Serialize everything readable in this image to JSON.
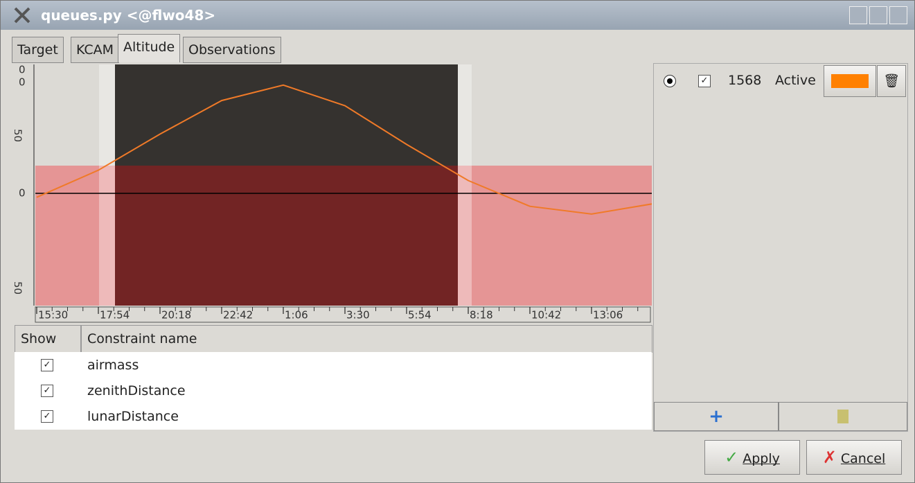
{
  "window": {
    "title": "queues.py <@flwo48>"
  },
  "tabs": [
    "Target",
    "KCAM",
    "Altitude",
    "Observations"
  ],
  "y_axis_labels": [
    "0",
    "0",
    "50",
    "0",
    "50"
  ],
  "chart_data": {
    "type": "line",
    "categories": [
      "15:30",
      "17:54",
      "20:18",
      "22:42",
      "1:06",
      "3:30",
      "5:54",
      "8:18",
      "10:42",
      "13:06",
      null
    ],
    "series": [
      {
        "color": "#f07a28",
        "values": [
          -3,
          18,
          46,
          72,
          84,
          68,
          38,
          10,
          -10,
          -16,
          -8
        ]
      }
    ],
    "ylim": [
      -87,
      100
    ]
  },
  "target": {
    "id": "1568",
    "status": "Active"
  },
  "constraints": {
    "headers": [
      "Show",
      "Constraint name"
    ],
    "rows": [
      "airmass",
      "zenithDistance",
      "lunarDistance"
    ]
  },
  "buttons": {
    "apply": "Apply",
    "cancel": "Cancel"
  }
}
